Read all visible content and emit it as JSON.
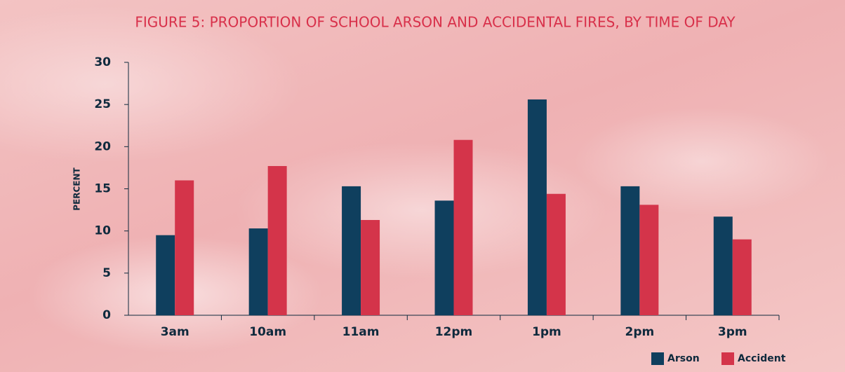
{
  "chart_data": {
    "type": "bar",
    "title": "FIGURE 5: PROPORTION OF SCHOOL ARSON AND ACCIDENTAL FIRES, BY TIME OF DAY",
    "y_label": "PERCENT",
    "categories": [
      "3am",
      "10am",
      "11am",
      "12pm",
      "1pm",
      "2pm",
      "3pm"
    ],
    "series": [
      {
        "name": "Arson",
        "color": "#0f3f5e",
        "values": [
          9.5,
          10.3,
          15.3,
          13.6,
          25.6,
          15.3,
          11.7
        ]
      },
      {
        "name": "Accident",
        "color": "#d4344a",
        "values": [
          16.0,
          17.7,
          11.3,
          20.8,
          14.4,
          13.1,
          9.0
        ]
      }
    ],
    "ylim": [
      0,
      30
    ],
    "yticks": [
      0,
      5,
      10,
      15,
      20,
      25,
      30
    ],
    "grid": false,
    "legend": "bottom-right"
  }
}
